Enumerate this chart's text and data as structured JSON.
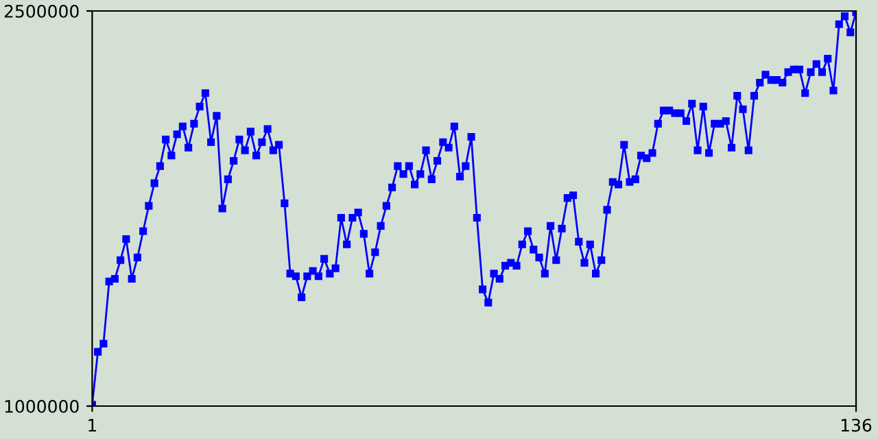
{
  "chart_data": {
    "type": "line",
    "x": [
      1,
      2,
      3,
      4,
      5,
      6,
      7,
      8,
      9,
      10,
      11,
      12,
      13,
      14,
      15,
      16,
      17,
      18,
      19,
      20,
      21,
      22,
      23,
      24,
      25,
      26,
      27,
      28,
      29,
      30,
      31,
      32,
      33,
      34,
      35,
      36,
      37,
      38,
      39,
      40,
      41,
      42,
      43,
      44,
      45,
      46,
      47,
      48,
      49,
      50,
      51,
      52,
      53,
      54,
      55,
      56,
      57,
      58,
      59,
      60,
      61,
      62,
      63,
      64,
      65,
      66,
      67,
      68,
      69,
      70,
      71,
      72,
      73,
      74,
      75,
      76,
      77,
      78,
      79,
      80,
      81,
      82,
      83,
      84,
      85,
      86,
      87,
      88,
      89,
      90,
      91,
      92,
      93,
      94,
      95,
      96,
      97,
      98,
      99,
      100,
      101,
      102,
      103,
      104,
      105,
      106,
      107,
      108,
      109,
      110,
      111,
      112,
      113,
      114,
      115,
      116,
      117,
      118,
      119,
      120,
      121,
      122,
      123,
      124,
      125,
      126,
      127,
      128,
      129,
      130,
      131,
      132,
      133,
      134,
      135,
      136
    ],
    "series": [
      {
        "color": "#0000ff",
        "values": [
          1005000,
          1206000,
          1237000,
          1473000,
          1483000,
          1554000,
          1634000,
          1483000,
          1564000,
          1664000,
          1760000,
          1846000,
          1911000,
          2012000,
          1951000,
          2032000,
          2062000,
          1981000,
          2072000,
          2137000,
          2188000,
          2002000,
          2102000,
          1750000,
          1861000,
          1931000,
          2012000,
          1971000,
          2042000,
          1951000,
          2002000,
          2052000,
          1971000,
          1992000,
          1770000,
          1503000,
          1493000,
          1413000,
          1493000,
          1513000,
          1493000,
          1559000,
          1503000,
          1523000,
          1715000,
          1614000,
          1715000,
          1735000,
          1654000,
          1503000,
          1584000,
          1684000,
          1760000,
          1830000,
          1911000,
          1881000,
          1911000,
          1841000,
          1881000,
          1971000,
          1861000,
          1931000,
          2002000,
          1981000,
          2062000,
          1871000,
          1911000,
          2022000,
          1715000,
          1443000,
          1393000,
          1503000,
          1483000,
          1533000,
          1544000,
          1533000,
          1614000,
          1664000,
          1594000,
          1564000,
          1503000,
          1684000,
          1554000,
          1674000,
          1790000,
          1800000,
          1624000,
          1544000,
          1614000,
          1503000,
          1554000,
          1745000,
          1851000,
          1841000,
          1992000,
          1851000,
          1861000,
          1951000,
          1941000,
          1961000,
          2072000,
          2122000,
          2122000,
          2112000,
          2112000,
          2082000,
          2148000,
          1971000,
          2137000,
          1961000,
          2072000,
          2072000,
          2082000,
          1981000,
          2178000,
          2127000,
          1971000,
          2178000,
          2228000,
          2258000,
          2238000,
          2238000,
          2228000,
          2268000,
          2278000,
          2278000,
          2188000,
          2268000,
          2299000,
          2268000,
          2319000,
          2198000,
          2450000,
          2480000,
          2419000,
          2495000
        ]
      }
    ],
    "xlim": [
      1,
      136
    ],
    "xticks": [
      1,
      136
    ],
    "ylim": [
      1000000,
      2500000
    ],
    "yticks": [
      1000000,
      2500000
    ],
    "grid": false,
    "legend": false,
    "marker": "square",
    "line_style": "solid"
  }
}
